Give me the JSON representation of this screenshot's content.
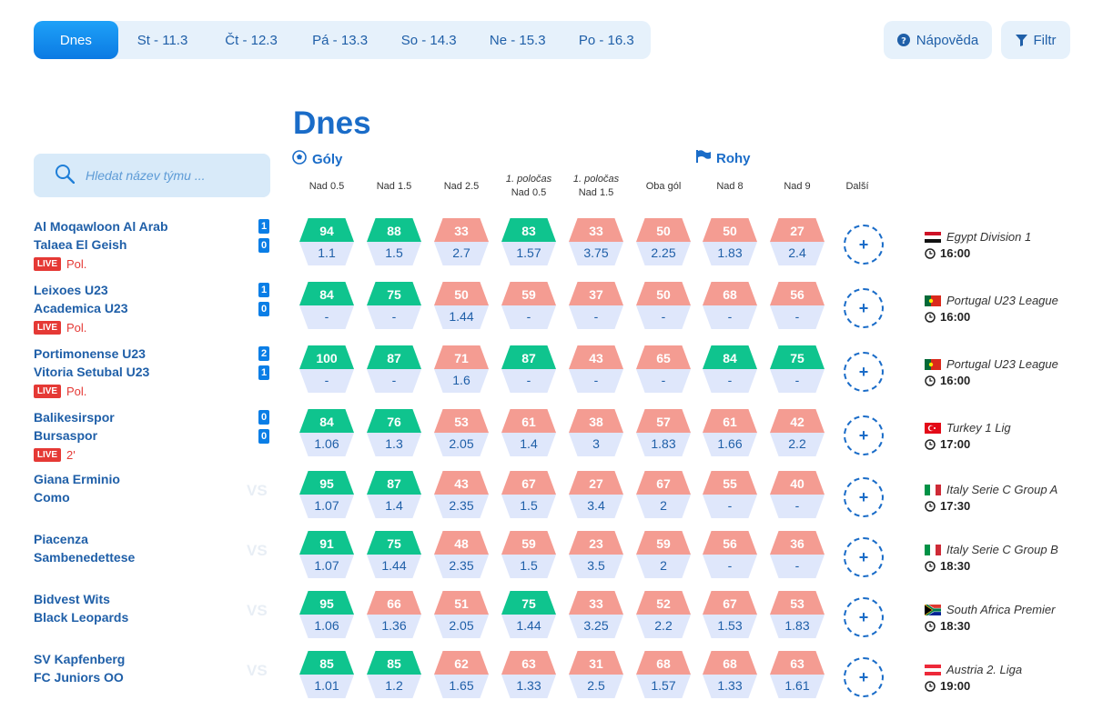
{
  "tabs": [
    {
      "label": "Dnes",
      "active": true
    },
    {
      "label": "St - 11.3"
    },
    {
      "label": "Čt - 12.3"
    },
    {
      "label": "Pá - 13.3"
    },
    {
      "label": "So - 14.3"
    },
    {
      "label": "Ne - 15.3"
    },
    {
      "label": "Po - 16.3"
    }
  ],
  "help_label": "Nápověda",
  "filter_label": "Filtr",
  "title": "Dnes",
  "groups": {
    "goals": "Góly",
    "corners": "Rohy"
  },
  "search": {
    "placeholder": "Hledat název týmu ..."
  },
  "columns": [
    {
      "line1": "",
      "line2": "Nad 0.5"
    },
    {
      "line1": "",
      "line2": "Nad 1.5"
    },
    {
      "line1": "",
      "line2": "Nad 2.5"
    },
    {
      "line1": "1. poločas",
      "line2": "Nad 0.5"
    },
    {
      "line1": "1. poločas",
      "line2": "Nad 1.5"
    },
    {
      "line1": "",
      "line2": "Oba gól"
    },
    {
      "line1": "",
      "line2": "Nad 8"
    },
    {
      "line1": "",
      "line2": "Nad 9"
    },
    {
      "line1": "",
      "line2": "Další"
    }
  ],
  "colors": {
    "green": "#0fc48e",
    "red": "#f49c92",
    "accent": "#0b7ae3",
    "live": "#e53935"
  },
  "matches": [
    {
      "home": "Al Moqawloon Al Arab",
      "away": "Talaea El Geish",
      "live": true,
      "live_label": "LIVE",
      "status": "Pol.",
      "score_home": "1",
      "score_away": "0",
      "cells": [
        [
          "94",
          "1.1",
          "g"
        ],
        [
          "88",
          "1.5",
          "g"
        ],
        [
          "33",
          "2.7",
          "r"
        ],
        [
          "83",
          "1.57",
          "g"
        ],
        [
          "33",
          "3.75",
          "r"
        ],
        [
          "50",
          "2.25",
          "r"
        ],
        [
          "50",
          "1.83",
          "r"
        ],
        [
          "27",
          "2.4",
          "r"
        ]
      ],
      "league": "Egypt Division 1",
      "time": "16:00",
      "flag": "egypt"
    },
    {
      "home": "Leixoes U23",
      "away": "Academica U23",
      "live": true,
      "live_label": "LIVE",
      "status": "Pol.",
      "score_home": "1",
      "score_away": "0",
      "cells": [
        [
          "84",
          "-",
          "g"
        ],
        [
          "75",
          "-",
          "g"
        ],
        [
          "50",
          "1.44",
          "r"
        ],
        [
          "59",
          "-",
          "r"
        ],
        [
          "37",
          "-",
          "r"
        ],
        [
          "50",
          "-",
          "r"
        ],
        [
          "68",
          "-",
          "r"
        ],
        [
          "56",
          "-",
          "r"
        ]
      ],
      "league": "Portugal U23 League",
      "time": "16:00",
      "flag": "portugal"
    },
    {
      "home": "Portimonense U23",
      "away": "Vitoria Setubal U23",
      "live": true,
      "live_label": "LIVE",
      "status": "Pol.",
      "score_home": "2",
      "score_away": "1",
      "cells": [
        [
          "100",
          "-",
          "g"
        ],
        [
          "87",
          "-",
          "g"
        ],
        [
          "71",
          "1.6",
          "r"
        ],
        [
          "87",
          "-",
          "g"
        ],
        [
          "43",
          "-",
          "r"
        ],
        [
          "65",
          "-",
          "r"
        ],
        [
          "84",
          "-",
          "g"
        ],
        [
          "75",
          "-",
          "g"
        ]
      ],
      "league": "Portugal U23 League",
      "time": "16:00",
      "flag": "portugal"
    },
    {
      "home": "Balikesirspor",
      "away": "Bursaspor",
      "live": true,
      "live_label": "LIVE",
      "status": "2'",
      "score_home": "0",
      "score_away": "0",
      "cells": [
        [
          "84",
          "1.06",
          "g"
        ],
        [
          "76",
          "1.3",
          "g"
        ],
        [
          "53",
          "2.05",
          "r"
        ],
        [
          "61",
          "1.4",
          "r"
        ],
        [
          "38",
          "3",
          "r"
        ],
        [
          "57",
          "1.83",
          "r"
        ],
        [
          "61",
          "1.66",
          "r"
        ],
        [
          "42",
          "2.2",
          "r"
        ]
      ],
      "league": "Turkey 1 Lig",
      "time": "17:00",
      "flag": "turkey"
    },
    {
      "home": "Giana Erminio",
      "away": "Como",
      "live": false,
      "vs_label": "VS",
      "cells": [
        [
          "95",
          "1.07",
          "g"
        ],
        [
          "87",
          "1.4",
          "g"
        ],
        [
          "43",
          "2.35",
          "r"
        ],
        [
          "67",
          "1.5",
          "r"
        ],
        [
          "27",
          "3.4",
          "r"
        ],
        [
          "67",
          "2",
          "r"
        ],
        [
          "55",
          "-",
          "r"
        ],
        [
          "40",
          "-",
          "r"
        ]
      ],
      "league": "Italy Serie C Group A",
      "time": "17:30",
      "flag": "italy"
    },
    {
      "home": "Piacenza",
      "away": "Sambenedettese",
      "live": false,
      "vs_label": "VS",
      "cells": [
        [
          "91",
          "1.07",
          "g"
        ],
        [
          "75",
          "1.44",
          "g"
        ],
        [
          "48",
          "2.35",
          "r"
        ],
        [
          "59",
          "1.5",
          "r"
        ],
        [
          "23",
          "3.5",
          "r"
        ],
        [
          "59",
          "2",
          "r"
        ],
        [
          "56",
          "-",
          "r"
        ],
        [
          "36",
          "-",
          "r"
        ]
      ],
      "league": "Italy Serie C Group B",
      "time": "18:30",
      "flag": "italy"
    },
    {
      "home": "Bidvest Wits",
      "away": "Black Leopards",
      "live": false,
      "vs_label": "VS",
      "cells": [
        [
          "95",
          "1.06",
          "g"
        ],
        [
          "66",
          "1.36",
          "r"
        ],
        [
          "51",
          "2.05",
          "r"
        ],
        [
          "75",
          "1.44",
          "g"
        ],
        [
          "33",
          "3.25",
          "r"
        ],
        [
          "52",
          "2.2",
          "r"
        ],
        [
          "67",
          "1.53",
          "r"
        ],
        [
          "53",
          "1.83",
          "r"
        ]
      ],
      "league": "South Africa Premier",
      "time": "18:30",
      "flag": "southafrica"
    },
    {
      "home": "SV Kapfenberg",
      "away": "FC Juniors OO",
      "live": false,
      "vs_label": "VS",
      "cells": [
        [
          "85",
          "1.01",
          "g"
        ],
        [
          "85",
          "1.2",
          "g"
        ],
        [
          "62",
          "1.65",
          "r"
        ],
        [
          "63",
          "1.33",
          "r"
        ],
        [
          "31",
          "2.5",
          "r"
        ],
        [
          "68",
          "1.57",
          "r"
        ],
        [
          "68",
          "1.33",
          "r"
        ],
        [
          "63",
          "1.61",
          "r"
        ]
      ],
      "league": "Austria 2. Liga",
      "time": "19:00",
      "flag": "austria"
    }
  ],
  "more_label": "+"
}
